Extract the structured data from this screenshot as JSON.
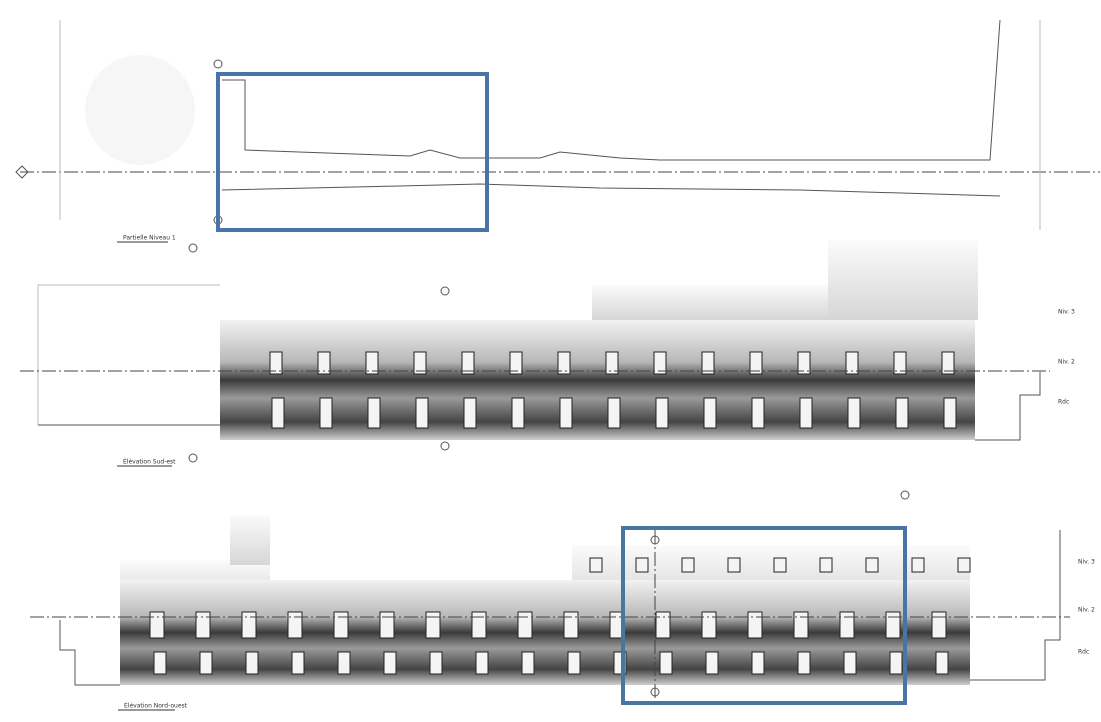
{
  "views": [
    {
      "title": "Partielle Niveau 1"
    },
    {
      "title": "Élévation Sud-est"
    },
    {
      "title": "Élévation Nord-ouest"
    }
  ],
  "levels_middle": [
    "Niv. 3",
    "Niv. 2",
    "Rdc"
  ],
  "levels_bottom": [
    "Niv. 3",
    "Niv. 2",
    "Rdc"
  ]
}
